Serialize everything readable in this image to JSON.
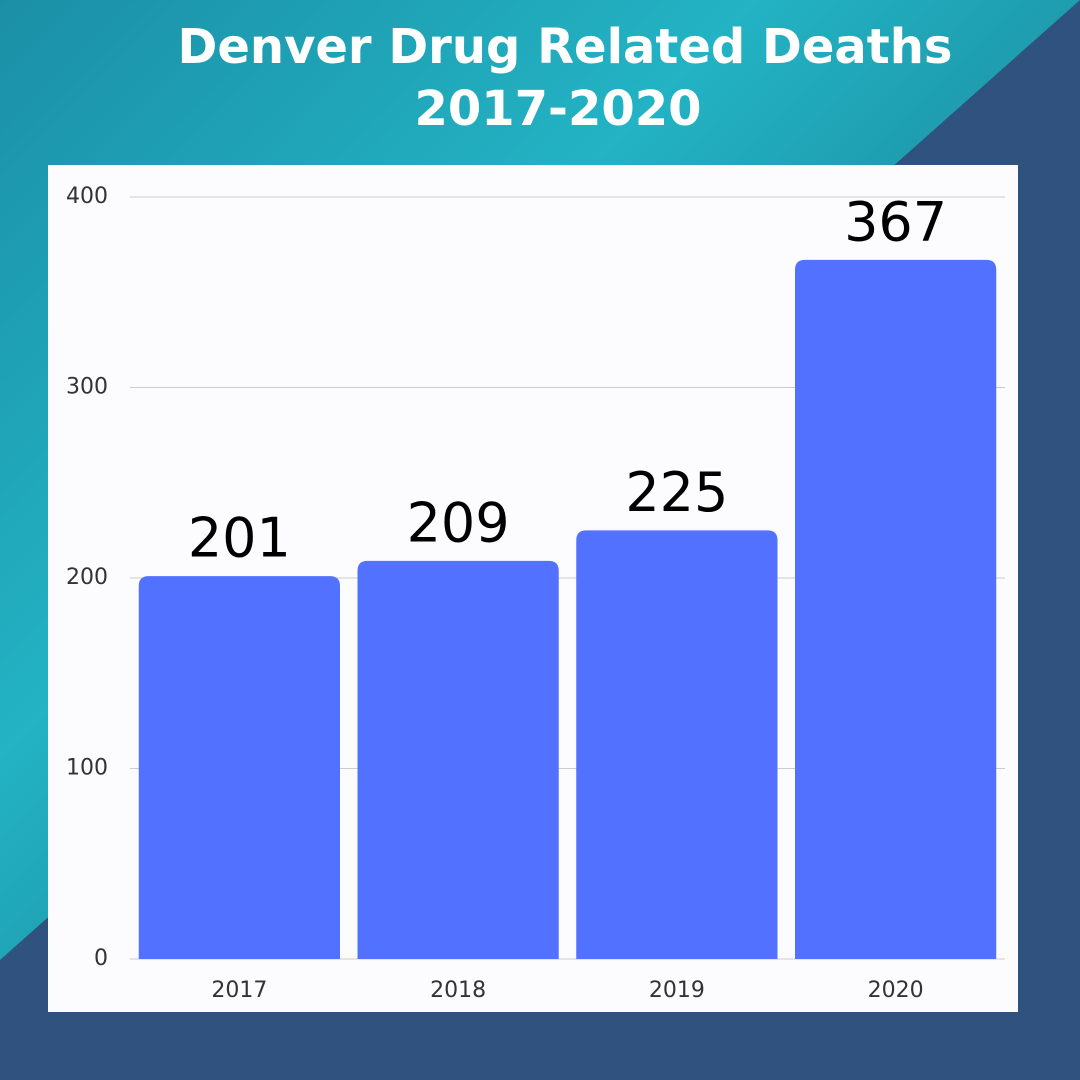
{
  "chart_data": {
    "type": "bar",
    "title": [
      "Denver Drug Related Deaths",
      "2017-2020"
    ],
    "categories": [
      "2017",
      "2018",
      "2019",
      "2020"
    ],
    "values": [
      201,
      209,
      225,
      367
    ],
    "color": "#5271ff",
    "ylim": [
      0,
      400
    ],
    "yticks": [
      0,
      100,
      200,
      300,
      400
    ],
    "grid": true
  }
}
